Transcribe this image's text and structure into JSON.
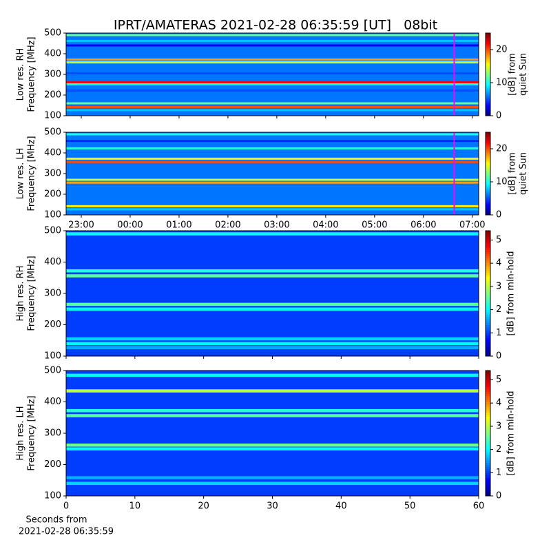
{
  "title": "IPRT/AMATERAS 2021-02-28 06:35:59 [UT]   08bit",
  "xlabel_lines": [
    "Seconds from",
    "2021-02-28 06:35:59"
  ],
  "chart_data": [
    {
      "type": "heatmap",
      "ylabel_lines": [
        "Low res. RH",
        "Frequency [MHz]"
      ],
      "xlim": [
        -1.31,
        7.13
      ],
      "sharex_with_below": true,
      "ylim": [
        100,
        500
      ],
      "yticks": [
        100,
        200,
        300,
        400,
        500
      ],
      "clim": [
        0,
        25
      ],
      "cticks": [
        0,
        10,
        20
      ],
      "clabel_lines": [
        "[dB] from",
        "quiet Sun"
      ],
      "base_value": 6,
      "marker_x": 6.63,
      "marker_color": "#ff00ff",
      "y": [
        490,
        462,
        440,
        372,
        358,
        305,
        262,
        252,
        222,
        160,
        142,
        127
      ],
      "values": [
        12,
        8,
        3,
        18,
        14,
        5,
        22,
        10,
        5,
        12,
        20,
        8
      ]
    },
    {
      "type": "heatmap",
      "ylabel_lines": [
        "Low res. LH",
        "Frequency [MHz]"
      ],
      "xlim": [
        -1.31,
        7.13
      ],
      "xticks": [
        {
          "value": -1,
          "label": "23:00"
        },
        {
          "value": 0,
          "label": "00:00"
        },
        {
          "value": 1,
          "label": "01:00"
        },
        {
          "value": 2,
          "label": "02:00"
        },
        {
          "value": 3,
          "label": "03:00"
        },
        {
          "value": 4,
          "label": "04:00"
        },
        {
          "value": 5,
          "label": "05:00"
        },
        {
          "value": 6,
          "label": "06:00"
        },
        {
          "value": 7,
          "label": "07:00"
        }
      ],
      "ylim": [
        100,
        500
      ],
      "yticks": [
        100,
        200,
        300,
        400,
        500
      ],
      "clim": [
        0,
        25
      ],
      "cticks": [
        0,
        10,
        20
      ],
      "clabel_lines": [
        "[dB] from",
        "quiet Sun"
      ],
      "base_value": 6,
      "marker_x": 6.63,
      "marker_color": "#ff00ff",
      "y": [
        490,
        458,
        422,
        372,
        356,
        270,
        256,
        200,
        142,
        127
      ],
      "values": [
        10,
        4,
        10,
        16,
        20,
        14,
        18,
        6,
        16,
        8
      ]
    },
    {
      "type": "heatmap",
      "ylabel_lines": [
        "High res. RH",
        "Frequency [MHz]"
      ],
      "xlim": [
        0,
        60
      ],
      "sharex_with_below": true,
      "ylim": [
        100,
        500
      ],
      "yticks": [
        100,
        200,
        300,
        400,
        500
      ],
      "clim": [
        0,
        5.4
      ],
      "cticks": [
        0,
        1,
        2,
        3,
        4,
        5
      ],
      "clabel_lines": [
        "[dB] from min-hold"
      ],
      "base_value": 1,
      "y": [
        490,
        372,
        356,
        265,
        250,
        155,
        140,
        127
      ],
      "values": [
        2,
        2.2,
        2.5,
        2.5,
        2,
        1.8,
        2,
        1.6
      ]
    },
    {
      "type": "heatmap",
      "ylabel_lines": [
        "High res. LH",
        "Frequency [MHz]"
      ],
      "xlim": [
        0,
        60
      ],
      "xticks": [
        0,
        10,
        20,
        30,
        40,
        50,
        60
      ],
      "ylim": [
        100,
        500
      ],
      "yticks": [
        100,
        200,
        300,
        400,
        500
      ],
      "clim": [
        0,
        5.4
      ],
      "cticks": [
        0,
        1,
        2,
        3,
        4,
        5
      ],
      "clabel_lines": [
        "[dB] from min-hold"
      ],
      "base_value": 1,
      "y": [
        485,
        435,
        372,
        356,
        262,
        250,
        158,
        140
      ],
      "values": [
        2,
        3,
        2.2,
        2.5,
        2.6,
        2,
        1.6,
        1.8
      ]
    }
  ]
}
